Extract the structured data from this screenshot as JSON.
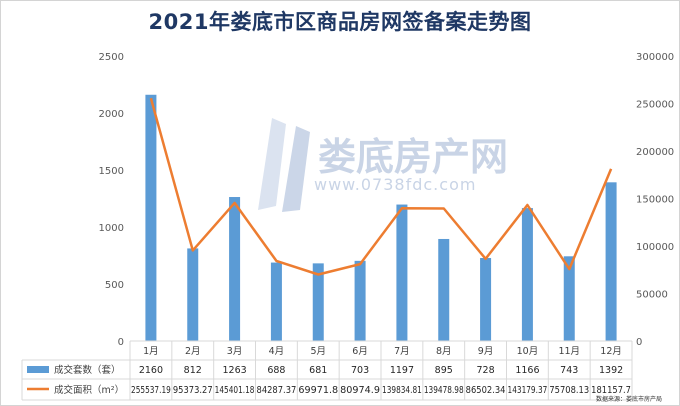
{
  "title": "2021年娄底市区商品房网签备案走势图",
  "source_text": "数据来源：娄底市房产局",
  "watermark": {
    "name": "娄底房产网",
    "url": "www.0738fdc.com"
  },
  "colors": {
    "bar": "#5b9bd5",
    "line": "#ed7d31",
    "title": "#1f3864"
  },
  "chart_data": {
    "type": "bar",
    "categories": [
      "1月",
      "2月",
      "3月",
      "4月",
      "5月",
      "6月",
      "7月",
      "8月",
      "9月",
      "10月",
      "11月",
      "12月"
    ],
    "series": [
      {
        "name": "成交套数（套）",
        "type": "bar",
        "axis": "left",
        "values": [
          2160,
          812,
          1263,
          688,
          681,
          703,
          1197,
          895,
          728,
          1166,
          743,
          1392
        ]
      },
      {
        "name": "成交面积（m²）",
        "type": "line",
        "axis": "right",
        "values": [
          255537.19,
          95373.27,
          145401.18,
          84287.37,
          69971.8,
          80974.9,
          139834.81,
          139478.98,
          86502.34,
          143179.37,
          75708.13,
          181157.7
        ],
        "labels": [
          "255537.19",
          "95373.27",
          "145401.18",
          "84287.37",
          "69971.8",
          "80974.9",
          "139834.81",
          "139478.98",
          "86502.34",
          "143179.37",
          "75708.13",
          "181157.7"
        ]
      }
    ],
    "ylim": [
      0,
      2500
    ],
    "y_ticks": [
      "0",
      "500",
      "1000",
      "1500",
      "2000",
      "2500"
    ],
    "y2lim": [
      0,
      300000
    ],
    "y2_ticks": [
      "0",
      "50000",
      "100000",
      "150000",
      "200000",
      "250000",
      "300000"
    ],
    "bar_labels": [
      "2160",
      "812",
      "1263",
      "688",
      "681",
      "703",
      "1197",
      "895",
      "728",
      "1166",
      "743",
      "1392"
    ],
    "legend": "data-table",
    "grid": false
  }
}
